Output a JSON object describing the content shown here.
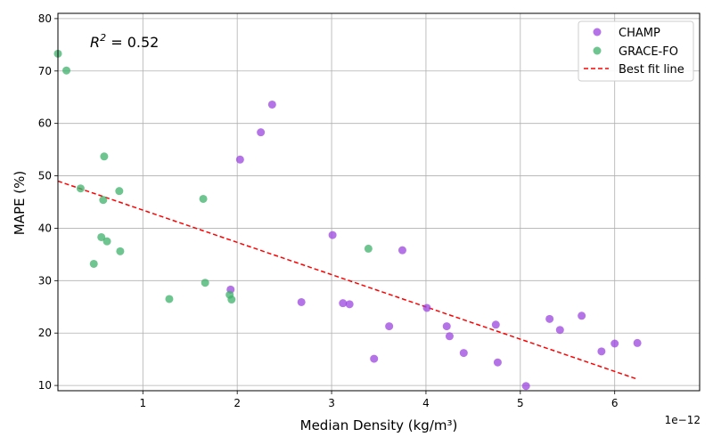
{
  "chart_data": {
    "type": "scatter",
    "xlabel": "Median Density (kg/m³)",
    "ylabel": "MAPE (%)",
    "x_offset_label": "1e−12",
    "annotation": {
      "prefix": "R",
      "sup": "2",
      "suffix": " = 0.52"
    },
    "xlim": [
      1e-13,
      6.9e-12
    ],
    "ylim": [
      9,
      81
    ],
    "x_ticks": [
      1e-12,
      2e-12,
      3e-12,
      4e-12,
      5e-12,
      6e-12
    ],
    "x_tick_labels": [
      "1",
      "2",
      "3",
      "4",
      "5",
      "6"
    ],
    "y_ticks": [
      10,
      20,
      30,
      40,
      50,
      60,
      70,
      80
    ],
    "y_tick_labels": [
      "10",
      "20",
      "30",
      "40",
      "50",
      "60",
      "70",
      "80"
    ],
    "grid": true,
    "legend_position": "top-right",
    "series": [
      {
        "name": "CHAMP",
        "color": "#9b45e0",
        "points": [
          [
            1.93e-12,
            28.3
          ],
          [
            2.03e-12,
            53.1
          ],
          [
            2.25e-12,
            58.3
          ],
          [
            2.37e-12,
            63.6
          ],
          [
            2.68e-12,
            25.9
          ],
          [
            3.01e-12,
            38.7
          ],
          [
            3.12e-12,
            25.7
          ],
          [
            3.19e-12,
            25.5
          ],
          [
            3.45e-12,
            15.1
          ],
          [
            3.61e-12,
            21.3
          ],
          [
            3.75e-12,
            35.8
          ],
          [
            4.01e-12,
            24.8
          ],
          [
            4.22e-12,
            21.3
          ],
          [
            4.25e-12,
            19.4
          ],
          [
            4.4e-12,
            16.2
          ],
          [
            4.74e-12,
            21.6
          ],
          [
            4.76e-12,
            14.4
          ],
          [
            5.06e-12,
            9.9
          ],
          [
            5.31e-12,
            22.7
          ],
          [
            5.42e-12,
            20.6
          ],
          [
            5.65e-12,
            23.3
          ],
          [
            5.86e-12,
            16.5
          ],
          [
            6e-12,
            18.0
          ],
          [
            6.24e-12,
            18.1
          ]
        ]
      },
      {
        "name": "GRACE-FO",
        "color": "#3fb26b",
        "points": [
          [
            1e-13,
            73.3
          ],
          [
            1.9e-13,
            70.1
          ],
          [
            3.4e-13,
            47.6
          ],
          [
            4.8e-13,
            33.2
          ],
          [
            5.6e-13,
            38.3
          ],
          [
            5.8e-13,
            45.4
          ],
          [
            5.9e-13,
            53.7
          ],
          [
            6.2e-13,
            37.5
          ],
          [
            7.5e-13,
            47.1
          ],
          [
            7.6e-13,
            35.6
          ],
          [
            1.28e-12,
            26.5
          ],
          [
            1.64e-12,
            45.6
          ],
          [
            1.66e-12,
            29.6
          ],
          [
            1.92e-12,
            27.3
          ],
          [
            1.94e-12,
            26.4
          ],
          [
            3.39e-12,
            36.1
          ]
        ]
      },
      {
        "name": "Best fit line",
        "color": "#ff0000",
        "points": [
          [
            1e-13,
            49.0
          ],
          [
            6.24e-12,
            11.2
          ]
        ]
      }
    ]
  }
}
